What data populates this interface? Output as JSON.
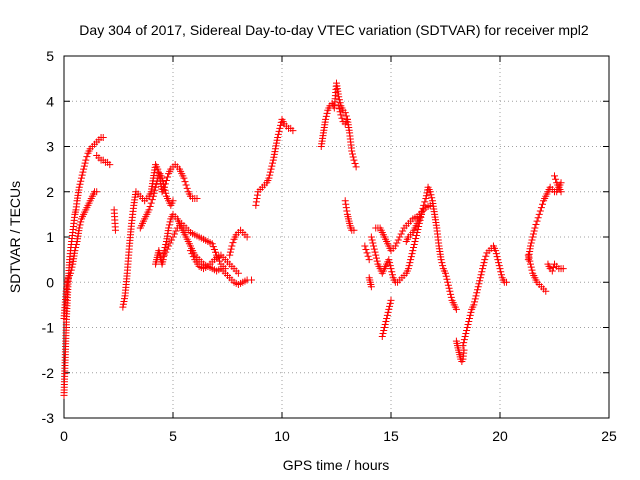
{
  "chart_data": {
    "type": "scatter",
    "title": "Day 304 of 2017, Sidereal Day-to-day VTEC variation (SDTVAR) for receiver mpl2",
    "xlabel": "GPS time / hours",
    "ylabel": "SDTVAR / TECUs",
    "xlim": [
      0,
      25
    ],
    "ylim": [
      -3,
      5
    ],
    "xticks": [
      "0",
      "5",
      "10",
      "15",
      "20",
      "25"
    ],
    "yticks": [
      "-3",
      "-2",
      "-1",
      "0",
      "1",
      "2",
      "3",
      "4",
      "5"
    ],
    "grid": true,
    "marker": "plus",
    "color": "#ff0000",
    "series": [
      {
        "name": "s1",
        "x": [
          0.0,
          0.02,
          0.04,
          0.06,
          0.08,
          0.1,
          0.12,
          0.15,
          0.18,
          0.22,
          0.26,
          0.3,
          0.35,
          0.4,
          0.45,
          0.5,
          0.55,
          0.6,
          0.7,
          0.8,
          0.9,
          1.0,
          1.1,
          1.2,
          1.3,
          1.4,
          1.5,
          1.6,
          1.7,
          1.8
        ],
        "y": [
          -2.5,
          -2.2,
          -1.9,
          -1.6,
          -1.3,
          -1.0,
          -0.7,
          -0.4,
          -0.1,
          0.2,
          0.5,
          0.7,
          0.9,
          1.1,
          1.3,
          1.5,
          1.6,
          1.8,
          2.1,
          2.3,
          2.5,
          2.7,
          2.85,
          2.95,
          3.0,
          3.05,
          3.1,
          3.15,
          3.2,
          3.2
        ]
      },
      {
        "name": "s2",
        "x": [
          0.0,
          0.05,
          0.1,
          0.15,
          0.2,
          0.3,
          0.4,
          0.5,
          0.6,
          0.7,
          0.8,
          0.9,
          1.0,
          1.1,
          1.2,
          1.3,
          1.4,
          1.5
        ],
        "y": [
          -0.8,
          -0.5,
          -0.2,
          0.0,
          0.1,
          0.2,
          0.4,
          0.7,
          0.9,
          1.2,
          1.4,
          1.5,
          1.6,
          1.7,
          1.8,
          1.9,
          2.0,
          2.0
        ]
      },
      {
        "name": "s3",
        "x": [
          1.5,
          1.6,
          1.7,
          1.8,
          1.9,
          2.0,
          2.1
        ],
        "y": [
          2.8,
          2.75,
          2.7,
          2.7,
          2.65,
          2.65,
          2.6
        ]
      },
      {
        "name": "s4",
        "x": [
          2.3,
          2.32,
          2.34,
          2.36
        ],
        "y": [
          1.6,
          1.45,
          1.3,
          1.15
        ]
      },
      {
        "name": "s5",
        "x": [
          2.7,
          2.8,
          2.9,
          3.0,
          3.1,
          3.2,
          3.3,
          3.4,
          3.5,
          3.6,
          3.7,
          3.8,
          3.9,
          4.0,
          4.1,
          4.2,
          4.3,
          4.4,
          4.5,
          4.6,
          4.7,
          4.8,
          4.9,
          5.0,
          5.1,
          5.2,
          5.3,
          5.4,
          5.5,
          5.6,
          5.7,
          5.8,
          5.9,
          6.0,
          6.1
        ],
        "y": [
          -0.55,
          -0.3,
          0.2,
          0.8,
          1.3,
          1.7,
          2.0,
          1.95,
          1.9,
          1.85,
          1.8,
          1.85,
          1.9,
          2.0,
          2.3,
          2.6,
          2.5,
          2.3,
          2.0,
          2.1,
          2.25,
          2.4,
          2.5,
          2.55,
          2.6,
          2.55,
          2.5,
          2.4,
          2.3,
          2.15,
          2.0,
          1.9,
          1.85,
          1.85,
          1.85
        ]
      },
      {
        "name": "s6",
        "x": [
          3.5,
          3.6,
          3.7,
          3.8,
          3.9,
          4.0,
          4.1,
          4.2,
          4.3,
          4.4,
          4.5,
          4.6,
          4.7,
          4.8,
          4.9,
          5.0
        ],
        "y": [
          1.2,
          1.3,
          1.4,
          1.5,
          1.6,
          1.75,
          1.9,
          2.1,
          2.3,
          2.4,
          2.3,
          2.1,
          1.9,
          1.8,
          1.7,
          1.8
        ]
      },
      {
        "name": "s7",
        "x": [
          4.2,
          4.25,
          4.3,
          4.35,
          4.4,
          4.45,
          4.5,
          4.55,
          4.6,
          4.7,
          4.8,
          4.9,
          5.0,
          5.1,
          5.2,
          5.3,
          5.4,
          5.5,
          5.6,
          5.7,
          5.8,
          5.9,
          6.0,
          6.2,
          6.4,
          6.6,
          6.8,
          7.0,
          7.2,
          7.4,
          7.6,
          7.8,
          8.0,
          8.2,
          8.4,
          8.6
        ],
        "y": [
          0.4,
          0.5,
          0.6,
          0.7,
          0.6,
          0.5,
          0.4,
          0.5,
          0.7,
          0.9,
          1.2,
          1.4,
          1.5,
          1.45,
          1.4,
          1.3,
          1.2,
          1.1,
          1.0,
          0.9,
          0.8,
          0.7,
          0.6,
          0.5,
          0.4,
          0.35,
          0.3,
          0.25,
          0.3,
          0.2,
          0.1,
          0.0,
          -0.05,
          0.0,
          0.05,
          0.05
        ]
      },
      {
        "name": "s8",
        "x": [
          4.6,
          4.8,
          5.0,
          5.2,
          5.4,
          5.6,
          5.8,
          6.0,
          6.2,
          6.4,
          6.6,
          6.8,
          7.0,
          7.2,
          7.4
        ],
        "y": [
          0.6,
          0.8,
          1.0,
          1.2,
          1.3,
          1.2,
          1.1,
          1.05,
          1.0,
          0.95,
          0.9,
          0.85,
          0.6,
          0.4,
          0.3
        ]
      },
      {
        "name": "s9",
        "x": [
          5.8,
          6.0,
          6.2,
          6.4,
          6.6,
          6.8,
          7.0,
          7.2,
          7.4,
          7.6,
          7.8,
          8.0
        ],
        "y": [
          0.7,
          0.5,
          0.35,
          0.3,
          0.35,
          0.45,
          0.55,
          0.6,
          0.5,
          0.4,
          0.3,
          0.2
        ]
      },
      {
        "name": "s10",
        "x": [
          7.6,
          7.7,
          7.8,
          7.9,
          8.0,
          8.1,
          8.2,
          8.3,
          8.4
        ],
        "y": [
          0.6,
          0.8,
          0.95,
          1.05,
          1.1,
          1.15,
          1.1,
          1.05,
          1.0
        ]
      },
      {
        "name": "s11",
        "x": [
          8.8,
          8.85,
          8.9,
          9.0,
          9.1,
          9.2,
          9.3,
          9.4,
          9.5,
          9.6,
          9.7,
          9.8,
          9.9,
          10.0,
          10.1,
          10.2,
          10.3,
          10.4,
          10.5
        ],
        "y": [
          1.7,
          1.85,
          2.0,
          2.05,
          2.1,
          2.15,
          2.2,
          2.3,
          2.5,
          2.7,
          2.95,
          3.2,
          3.4,
          3.6,
          3.5,
          3.45,
          3.4,
          3.4,
          3.35
        ]
      },
      {
        "name": "s12",
        "x": [
          11.8,
          11.9,
          12.0,
          12.1,
          12.2,
          12.3,
          12.4,
          12.5,
          12.6,
          12.7,
          12.8,
          12.9,
          13.0,
          13.1,
          13.2,
          13.3,
          13.4
        ],
        "y": [
          3.0,
          3.3,
          3.6,
          3.8,
          3.9,
          3.95,
          3.85,
          4.4,
          4.1,
          3.9,
          3.8,
          3.75,
          3.6,
          3.3,
          2.9,
          2.7,
          2.55
        ]
      },
      {
        "name": "s13",
        "x": [
          12.6,
          12.7,
          12.8,
          12.9,
          13.0
        ],
        "y": [
          3.9,
          3.7,
          3.55,
          3.5,
          3.6
        ]
      },
      {
        "name": "s14",
        "x": [
          12.9,
          12.95,
          13.0,
          13.05,
          13.1,
          13.15,
          13.2,
          13.3
        ],
        "y": [
          1.8,
          1.65,
          1.5,
          1.4,
          1.3,
          1.2,
          1.15,
          1.15
        ]
      },
      {
        "name": "s15",
        "x": [
          13.8,
          13.9,
          14.0
        ],
        "y": [
          0.8,
          0.65,
          0.5
        ]
      },
      {
        "name": "s16",
        "x": [
          14.0,
          14.05,
          14.1
        ],
        "y": [
          0.1,
          0.0,
          -0.1
        ]
      },
      {
        "name": "s17",
        "x": [
          14.1,
          14.2,
          14.3,
          14.4,
          14.5,
          14.6,
          14.7,
          14.8,
          14.9,
          15.0,
          15.1,
          15.2,
          15.3,
          15.4,
          15.5,
          15.6,
          15.7,
          15.8,
          15.9,
          16.0,
          16.1,
          16.2,
          16.3,
          16.4,
          16.5,
          16.6,
          16.7,
          16.8,
          16.9,
          17.0,
          17.1,
          17.2,
          17.3,
          17.4,
          17.5,
          17.6,
          17.7,
          17.8,
          17.9,
          18.0
        ],
        "y": [
          1.0,
          0.8,
          0.6,
          0.4,
          0.3,
          0.2,
          0.3,
          0.4,
          0.5,
          0.3,
          0.1,
          0.0,
          0.0,
          0.05,
          0.1,
          0.15,
          0.2,
          0.3,
          0.5,
          0.7,
          0.9,
          1.1,
          1.3,
          1.5,
          1.7,
          1.85,
          2.1,
          2.0,
          1.8,
          1.5,
          1.2,
          0.8,
          0.5,
          0.3,
          0.2,
          0.0,
          -0.2,
          -0.4,
          -0.5,
          -0.6
        ]
      },
      {
        "name": "s18",
        "x": [
          14.3,
          14.4,
          14.5,
          14.6,
          14.7,
          14.8,
          14.9,
          15.0,
          15.2,
          15.4,
          15.6,
          15.8,
          16.0,
          16.2,
          16.4,
          16.6,
          16.8
        ],
        "y": [
          1.2,
          1.2,
          1.2,
          1.1,
          1.0,
          0.9,
          0.8,
          0.7,
          0.8,
          1.0,
          1.2,
          1.3,
          1.4,
          1.45,
          1.55,
          1.65,
          1.7
        ]
      },
      {
        "name": "s19",
        "x": [
          14.6,
          14.7,
          14.8,
          14.9,
          15.0
        ],
        "y": [
          -1.2,
          -1.0,
          -0.8,
          -0.6,
          -0.4
        ]
      },
      {
        "name": "s20",
        "x": [
          15.7,
          15.8,
          15.9,
          16.0,
          16.1,
          16.2,
          16.3,
          16.4
        ],
        "y": [
          0.9,
          1.0,
          1.05,
          1.1,
          1.2,
          1.3,
          1.4,
          1.5
        ]
      },
      {
        "name": "s21",
        "x": [
          18.0,
          18.05,
          18.1,
          18.15,
          18.2,
          18.25,
          18.3,
          18.35
        ],
        "y": [
          -1.3,
          -1.4,
          -1.5,
          -1.6,
          -1.7,
          -1.75,
          -1.7,
          -1.5
        ]
      },
      {
        "name": "s22",
        "x": [
          18.3,
          18.4,
          18.5,
          18.6,
          18.7,
          18.8,
          18.9,
          19.0,
          19.1,
          19.2,
          19.3,
          19.4,
          19.5,
          19.6,
          19.7,
          19.8,
          19.9,
          20.0,
          20.1,
          20.2,
          20.3
        ],
        "y": [
          -1.4,
          -1.2,
          -1.0,
          -0.8,
          -0.6,
          -0.5,
          -0.3,
          -0.1,
          0.1,
          0.3,
          0.5,
          0.65,
          0.7,
          0.75,
          0.8,
          0.7,
          0.5,
          0.3,
          0.1,
          0.0,
          0.0
        ]
      },
      {
        "name": "s23",
        "x": [
          21.3,
          21.4,
          21.5,
          21.6,
          21.7,
          21.8,
          21.9,
          22.0,
          22.1,
          22.2,
          22.3,
          22.4,
          22.5,
          22.6,
          22.7,
          22.8
        ],
        "y": [
          0.5,
          0.8,
          1.0,
          1.2,
          1.35,
          1.5,
          1.65,
          1.8,
          1.9,
          2.0,
          2.1,
          2.05,
          2.0,
          2.0,
          2.1,
          2.2
        ]
      },
      {
        "name": "s24",
        "x": [
          21.3,
          21.4,
          21.5,
          21.6,
          21.7,
          21.8,
          21.9,
          22.0,
          22.1
        ],
        "y": [
          0.6,
          0.4,
          0.2,
          0.1,
          0.0,
          -0.05,
          -0.1,
          -0.15,
          -0.2
        ]
      },
      {
        "name": "s25",
        "x": [
          22.2,
          22.3,
          22.4,
          22.5,
          22.6,
          22.7,
          22.8,
          22.9
        ],
        "y": [
          0.4,
          0.3,
          0.25,
          0.4,
          0.35,
          0.3,
          0.3,
          0.3
        ]
      },
      {
        "name": "s26",
        "x": [
          22.5,
          22.6,
          22.7,
          22.8
        ],
        "y": [
          2.35,
          2.2,
          2.1,
          2.0
        ]
      }
    ]
  }
}
